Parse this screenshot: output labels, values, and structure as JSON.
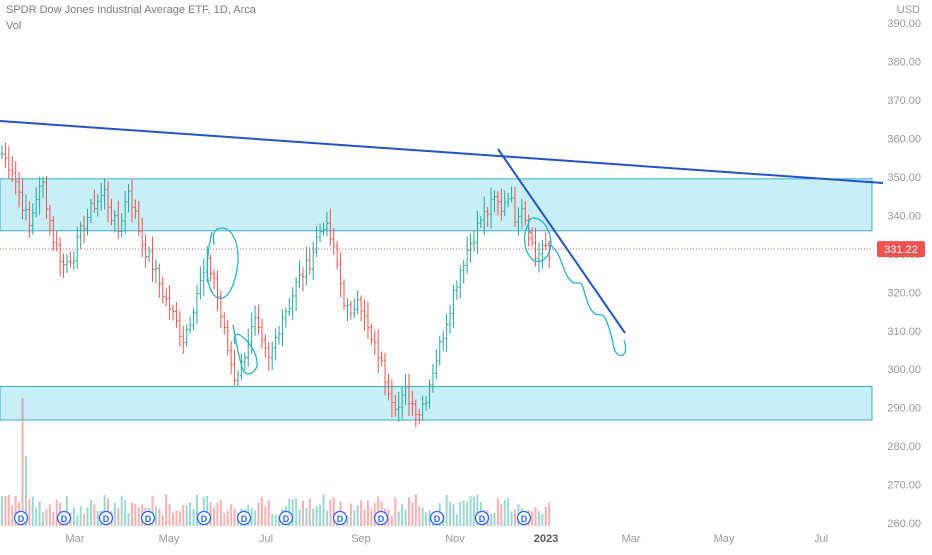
{
  "header": {
    "title": "SPDR Dow Jones Industrial Average ETF, 1D, Arca",
    "volume_label": "Vol",
    "currency": "USD"
  },
  "price_label": "331.22",
  "event_marker_letter": "D",
  "colors": {
    "up": "#26a69a",
    "down": "#ef5350",
    "zone_fill": "#c8eef7",
    "zone_border": "#3fa9d1",
    "trendline": "#2453c7",
    "projection": "#2ab3c6",
    "price_tag": "#ef5350",
    "axis_text": "#9598a1"
  },
  "chart_data": {
    "type": "ohlc",
    "x_labels": [
      "Mar",
      "May",
      "Jul",
      "Sep",
      "Nov",
      "2023",
      "Mar",
      "May",
      "Jul"
    ],
    "y_ticks": [
      "390.00",
      "380.00",
      "370.00",
      "360.00",
      "350.00",
      "340.00",
      "330.00",
      "320.00",
      "310.00",
      "300.00",
      "290.00",
      "280.00",
      "270.00",
      "260.00"
    ],
    "ylim": [
      253,
      396
    ],
    "last_price": 331.22,
    "zones": [
      {
        "from": 336.0,
        "to": 349.5
      },
      {
        "from": 286.8,
        "to": 295.5
      }
    ],
    "anchors": [
      [
        0,
        356
      ],
      [
        3,
        352
      ],
      [
        6,
        343
      ],
      [
        8,
        337
      ],
      [
        10,
        345
      ],
      [
        12,
        348
      ],
      [
        15,
        334
      ],
      [
        18,
        327
      ],
      [
        21,
        330
      ],
      [
        24,
        338
      ],
      [
        27,
        343
      ],
      [
        30,
        346
      ],
      [
        32,
        340
      ],
      [
        34,
        336
      ],
      [
        37,
        347
      ],
      [
        39,
        340
      ],
      [
        41,
        333
      ],
      [
        44,
        327
      ],
      [
        47,
        320
      ],
      [
        50,
        314
      ],
      [
        53,
        308
      ],
      [
        55,
        313
      ],
      [
        57,
        320
      ],
      [
        60,
        327
      ],
      [
        62,
        324
      ],
      [
        64,
        314
      ],
      [
        66,
        305
      ],
      [
        68,
        298
      ],
      [
        70,
        301
      ],
      [
        72,
        308
      ],
      [
        74,
        312
      ],
      [
        76,
        306
      ],
      [
        78,
        302
      ],
      [
        80,
        308
      ],
      [
        82,
        314
      ],
      [
        84,
        317
      ],
      [
        86,
        322
      ],
      [
        88,
        325
      ],
      [
        90,
        328
      ],
      [
        92,
        334
      ],
      [
        94,
        338
      ],
      [
        96,
        334
      ],
      [
        98,
        327
      ],
      [
        100,
        318
      ],
      [
        102,
        313
      ],
      [
        104,
        320
      ],
      [
        106,
        313
      ],
      [
        108,
        307
      ],
      [
        110,
        304
      ],
      [
        112,
        298
      ],
      [
        114,
        293
      ],
      [
        116,
        290
      ],
      [
        118,
        294
      ],
      [
        120,
        291
      ],
      [
        122,
        289
      ],
      [
        124,
        293
      ],
      [
        126,
        300
      ],
      [
        128,
        306
      ],
      [
        130,
        313
      ],
      [
        132,
        320
      ],
      [
        134,
        326
      ],
      [
        136,
        331
      ],
      [
        138,
        335
      ],
      [
        140,
        339
      ],
      [
        142,
        341
      ],
      [
        144,
        344
      ],
      [
        146,
        342
      ],
      [
        148,
        346
      ],
      [
        150,
        340
      ],
      [
        152,
        343
      ],
      [
        154,
        336
      ],
      [
        156,
        329
      ],
      [
        158,
        332
      ],
      [
        160,
        329
      ]
    ],
    "volume_spike_index": 6
  }
}
